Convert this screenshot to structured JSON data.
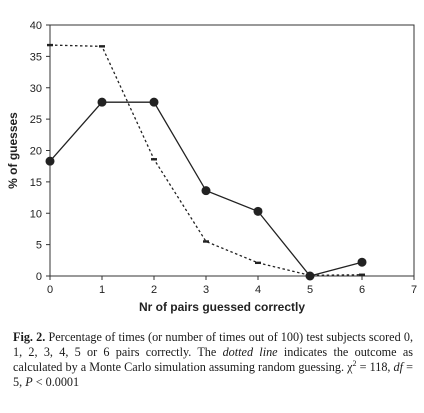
{
  "chart_data": {
    "type": "line",
    "xlabel": "Nr of pairs guessed correctly",
    "ylabel": "% of guesses",
    "xlim": [
      0,
      7
    ],
    "ylim": [
      0,
      40
    ],
    "x_ticks": [
      0,
      1,
      2,
      3,
      4,
      5,
      6,
      7
    ],
    "y_ticks": [
      0,
      5,
      10,
      15,
      20,
      25,
      30,
      35,
      40
    ],
    "grid": false,
    "legend": "none",
    "series": [
      {
        "style": "solid",
        "marker": "circle",
        "color": "#222222",
        "x": [
          0,
          1,
          2,
          3,
          4,
          5,
          6
        ],
        "y": [
          18.3,
          27.7,
          27.7,
          13.6,
          10.3,
          0.0,
          2.2
        ]
      },
      {
        "style": "dotted",
        "marker": "dash",
        "color": "#222222",
        "x": [
          0,
          1,
          2,
          3,
          4,
          5,
          6
        ],
        "y": [
          36.8,
          36.6,
          18.6,
          5.5,
          2.1,
          0.1,
          0.2
        ]
      }
    ]
  },
  "caption": {
    "label": "Fig. 2.",
    "part1": " Percentage of times (or number of times out of 100) test subjects scored 0, 1, 2, 3, 4, 5 or 6 pairs correctly. The ",
    "italic1": "dotted line",
    "part2": " indicates the outcome as calculated by a Monte Carlo simulation assuming random guessing. χ",
    "sup": "2",
    "part3": " = 118, ",
    "italic2": "df",
    "part4": " = 5, ",
    "italic3": "P",
    "part5": " < 0.0001"
  }
}
